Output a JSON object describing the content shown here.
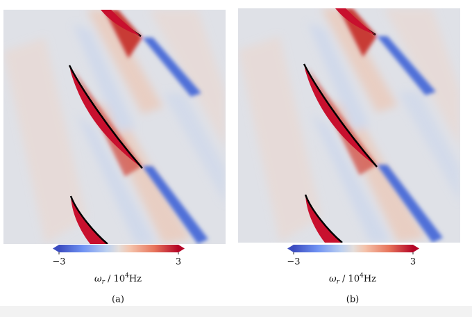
{
  "panels": [
    {
      "colorbar": {
        "lim": [
          -3,
          3
        ],
        "ticks": [
          {
            "value": -3,
            "label": "−3"
          },
          3
        ],
        "label": {
          "symbol": "ω",
          "subscript": "r",
          "separator": " / 10",
          "superscript": "4",
          "unit": "Hz"
        }
      },
      "caption": "(a)"
    },
    {
      "colorbar": {
        "lim": [
          -3,
          3
        ],
        "ticks": [
          {
            "value": -3,
            "label": "−3"
          },
          3
        ],
        "label": {
          "symbol": "ω",
          "subscript": "r",
          "separator": " / 10",
          "superscript": "4",
          "unit": "Hz"
        }
      },
      "caption": "(b)"
    }
  ]
}
